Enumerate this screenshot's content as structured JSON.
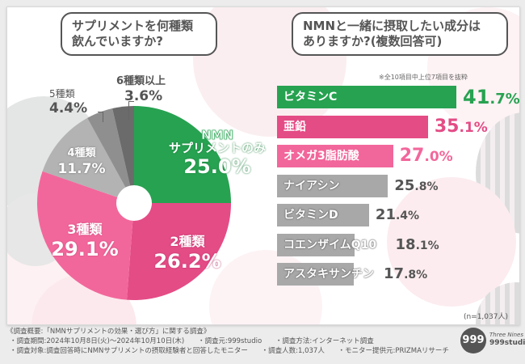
{
  "left_panel": {
    "question": [
      "サプリメントを何種類",
      "飲んでいますか?"
    ]
  },
  "right_panel": {
    "question": [
      "NMNと一緒に摂取したい成分は",
      "ありますか?(複数回答可)"
    ],
    "note": "※全10項目中上位7項目を抜粋",
    "sample_size": "(n=1,037人)"
  },
  "chart_data": [
    {
      "type": "pie",
      "title": "サプリメントを何種類飲んでいますか?",
      "start": "12 o'clock, clockwise",
      "donut_hole": true,
      "slices": [
        {
          "label": "NMNサプリメントのみ",
          "label_lines": [
            "NMN",
            "サプリメントのみ"
          ],
          "value": 25.0,
          "display": "25.0%",
          "color": "#27a251",
          "text_color": "#ffffff"
        },
        {
          "label": "2種類",
          "value": 26.2,
          "display": "26.2%",
          "color": "#e44c86",
          "text_color": "#ffffff"
        },
        {
          "label": "3種類",
          "value": 29.1,
          "display": "29.1%",
          "color": "#f2679b",
          "text_color": "#ffffff"
        },
        {
          "label": "4種類",
          "value": 11.7,
          "display": "11.7%",
          "color": "#b3b3b3",
          "text_color": "#ffffff"
        },
        {
          "label": "5種類",
          "value": 4.4,
          "display": "4.4%",
          "color": "#8f8f8f",
          "text_color": "#555555"
        },
        {
          "label": "6種類以上",
          "value": 3.6,
          "display": "3.6%",
          "color": "#6b6b6b",
          "text_color": "#555555"
        }
      ]
    },
    {
      "type": "bar",
      "orientation": "horizontal",
      "title": "NMNと一緒に摂取したい成分はありますか?(複数回答可)",
      "unit": "%",
      "categories": [
        "ビタミンC",
        "亜鉛",
        "オメガ3脂肪酸",
        "ナイアシン",
        "ビタミンD",
        "コエンザイムQ10",
        "アスタキサンチン"
      ],
      "values": [
        41.7,
        35.1,
        27.0,
        25.8,
        21.4,
        18.1,
        17.8
      ],
      "value_labels": [
        "41.7%",
        "35.1%",
        "27.0%",
        "25.8%",
        "21.4%",
        "18.1%",
        "17.8%"
      ],
      "colors": [
        "#27a251",
        "#e44c86",
        "#f2679b",
        "#a8a8a8",
        "#a8a8a8",
        "#a8a8a8",
        "#a8a8a8"
      ],
      "value_colors": [
        "#27a251",
        "#e44c86",
        "#f2679b",
        "#555555",
        "#555555",
        "#555555",
        "#555555"
      ],
      "note": "※全10項目中上位7項目を抜粋",
      "n": "n=1,037人"
    }
  ],
  "footer": {
    "heading": "《調査概要:「NMNサプリメントの効果・選び方」に関する調査》",
    "row1": [
      "・調査期間:2024年10月8日(火)〜2024年10月10日(木)",
      "・調査元:999studio",
      "・調査方法:インターネット調査"
    ],
    "row2": [
      "・調査対象:調査回答時にNMNサプリメントの摂取経験者と回答したモニター",
      "・調査人数:1,037人",
      "・モニター提供元:PRIZMAリサーチ"
    ]
  },
  "logo": {
    "mark": "999",
    "tagline": "Three Nines",
    "name": "999studio"
  }
}
